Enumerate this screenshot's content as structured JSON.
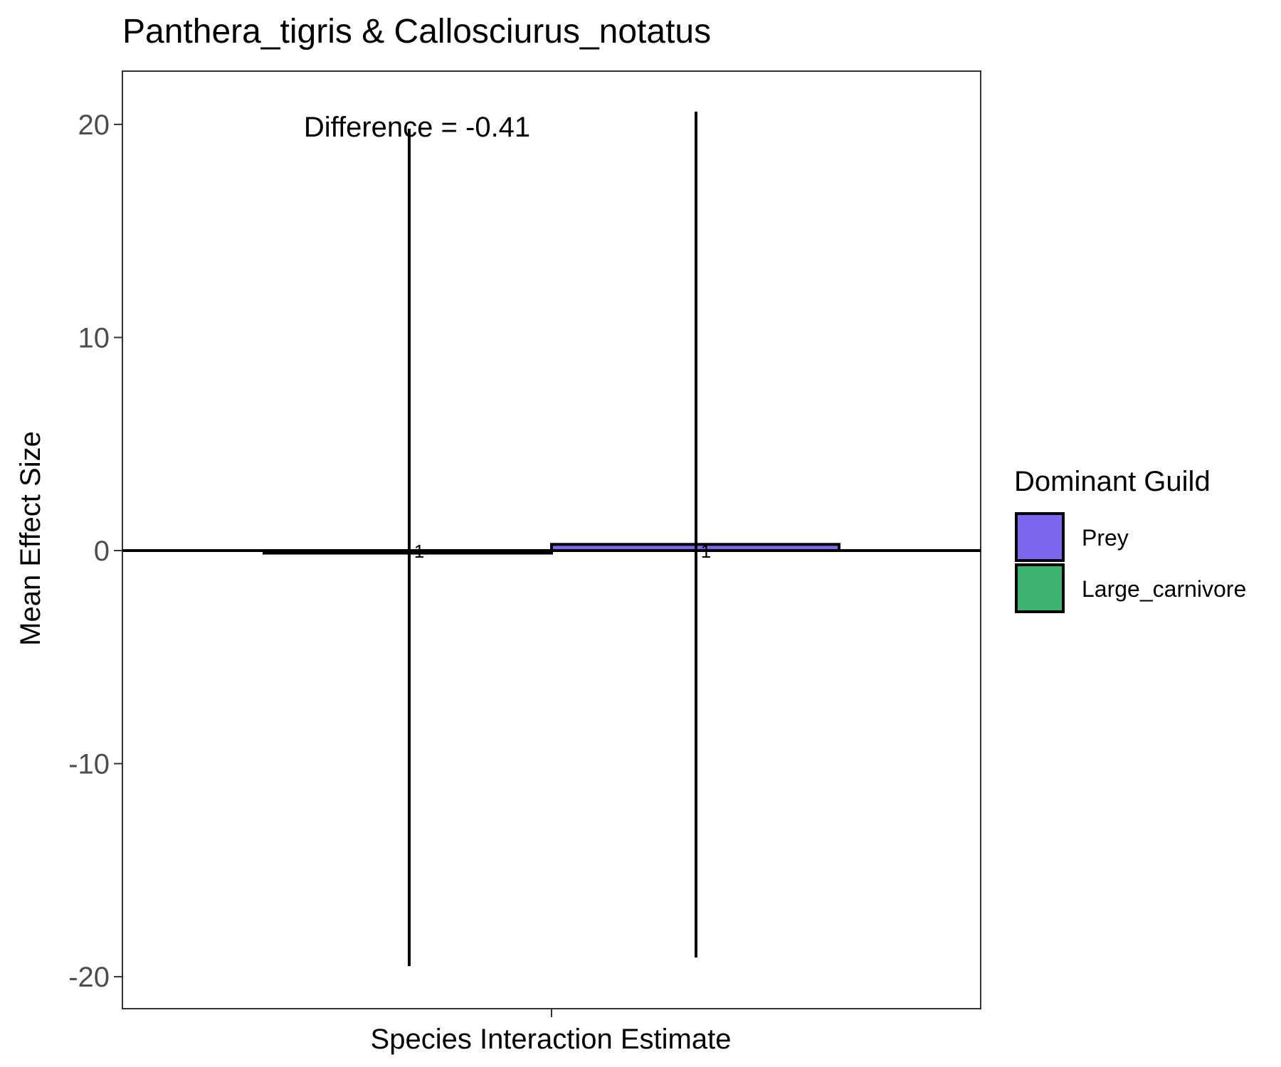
{
  "chart_data": {
    "type": "bar",
    "title": "Panthera_tigris & Callosciurus_notatus",
    "xlabel": "Species Interaction Estimate",
    "ylabel": "Mean Effect Size",
    "ylim": [
      -21.5,
      22.5
    ],
    "yticks": [
      20,
      10,
      0,
      -10,
      -20
    ],
    "ytick_labels": [
      "20",
      "10",
      "0",
      "-10",
      "-20"
    ],
    "x_tick_count": 1,
    "grid": false,
    "annotation": "Difference = -0.41",
    "legend": {
      "title": "Dominant Guild",
      "placement": "right",
      "entries": [
        {
          "label": "Prey",
          "color": "#7B68EE"
        },
        {
          "label": "Large_carnivore",
          "color": "#3CB371"
        }
      ]
    },
    "series": [
      {
        "name": "Large_carnivore",
        "value": -0.12,
        "error_low": -19.5,
        "error_high": 19.8,
        "color": "#3CB371",
        "n_label": "1"
      },
      {
        "name": "Prey",
        "value": 0.29,
        "error_low": -19.1,
        "error_high": 20.6,
        "color": "#7B68EE",
        "n_label": "1"
      }
    ],
    "hline": 0
  }
}
